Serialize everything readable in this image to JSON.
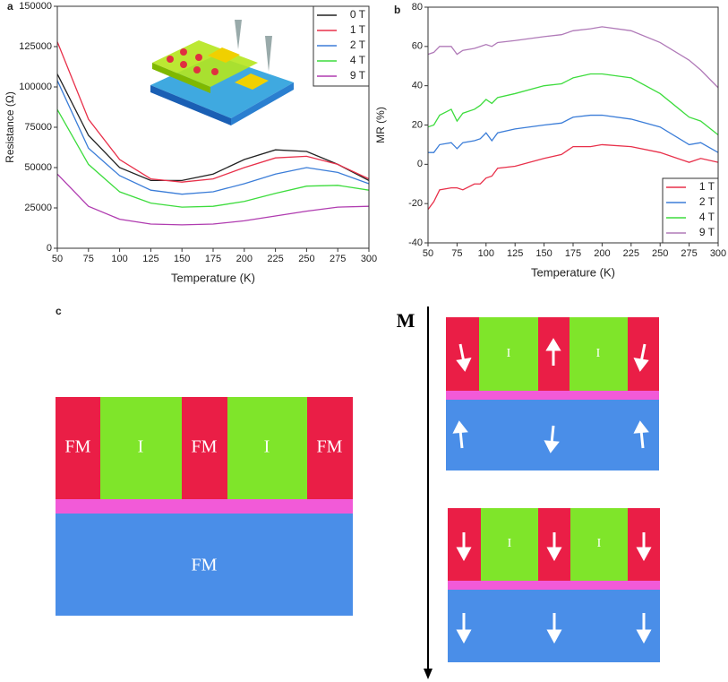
{
  "chart_data": [
    {
      "type": "line",
      "panel": "a",
      "xlabel": "Temperature (K)",
      "ylabel": "Resistance (Ω)",
      "x": [
        50,
        75,
        100,
        125,
        150,
        175,
        200,
        225,
        250,
        275,
        300
      ],
      "xlim": [
        50,
        300
      ],
      "xticks": [
        50,
        75,
        100,
        125,
        150,
        175,
        200,
        225,
        250,
        275,
        300
      ],
      "ylim": [
        0,
        150000
      ],
      "yticks": [
        0,
        25000,
        50000,
        75000,
        100000,
        125000,
        150000
      ],
      "grid": false,
      "legend": "upper right",
      "series": [
        {
          "name": "0 T",
          "color": "#222222",
          "values": [
            108000,
            70000,
            50000,
            42000,
            42000,
            46000,
            55000,
            61000,
            60000,
            52000,
            42000
          ]
        },
        {
          "name": "1 T",
          "color": "#e8304a",
          "values": [
            128000,
            80000,
            55000,
            43000,
            41000,
            43000,
            50000,
            56000,
            57000,
            52000,
            43000
          ]
        },
        {
          "name": "2 T",
          "color": "#3b7dd8",
          "values": [
            104000,
            62000,
            45000,
            36000,
            33500,
            35000,
            40000,
            46000,
            50000,
            47000,
            40000
          ]
        },
        {
          "name": "4 T",
          "color": "#3ddc3d",
          "values": [
            86000,
            52000,
            35000,
            28000,
            25500,
            26000,
            29000,
            34000,
            38500,
            39000,
            36000
          ]
        },
        {
          "name": "9 T",
          "color": "#b03cb0",
          "values": [
            46000,
            26000,
            18000,
            15000,
            14500,
            15000,
            17000,
            20000,
            23000,
            25500,
            26000
          ]
        }
      ]
    },
    {
      "type": "line",
      "panel": "b",
      "xlabel": "Temperature (K)",
      "ylabel": "MR (%)",
      "x": [
        50,
        55,
        60,
        70,
        75,
        80,
        90,
        95,
        100,
        105,
        110,
        125,
        150,
        165,
        175,
        190,
        200,
        225,
        250,
        275,
        285,
        300
      ],
      "xlim": [
        50,
        300
      ],
      "xticks": [
        50,
        75,
        100,
        125,
        150,
        175,
        200,
        225,
        250,
        275,
        300
      ],
      "ylim": [
        -40,
        80
      ],
      "yticks": [
        -40,
        -20,
        0,
        20,
        40,
        60,
        80
      ],
      "grid": false,
      "legend": "lower right",
      "series": [
        {
          "name": "1 T",
          "color": "#e8304a",
          "values": [
            -23,
            -19,
            -13,
            -12,
            -12,
            -13,
            -10,
            -10,
            -7,
            -6,
            -2,
            -1,
            3,
            5,
            9,
            9,
            10,
            9,
            6,
            1,
            3,
            1
          ]
        },
        {
          "name": "2 T",
          "color": "#3b7dd8",
          "values": [
            6,
            6,
            10,
            11,
            8,
            11,
            12,
            13,
            16,
            12,
            16,
            18,
            20,
            21,
            24,
            25,
            25,
            23,
            19,
            10,
            11,
            6
          ]
        },
        {
          "name": "4 T",
          "color": "#3ddc3d",
          "values": [
            19,
            20,
            25,
            28,
            22,
            26,
            28,
            30,
            33,
            31,
            34,
            36,
            40,
            41,
            44,
            46,
            46,
            44,
            36,
            24,
            22,
            15
          ]
        },
        {
          "name": "9 T",
          "color": "#b07ab8",
          "values": [
            56,
            57,
            60,
            60,
            56,
            58,
            59,
            60,
            61,
            60,
            62,
            63,
            65,
            66,
            68,
            69,
            70,
            68,
            62,
            53,
            48,
            39
          ]
        }
      ]
    }
  ],
  "diagram": {
    "panel": "c",
    "left": {
      "top_labels": [
        "FM",
        "I",
        "FM",
        "I",
        "FM"
      ],
      "bottom_label": "FM"
    },
    "right": {
      "axis_label": "M",
      "upper_labels": [
        "I",
        "I"
      ],
      "lower_labels": [
        "I",
        "I"
      ]
    }
  }
}
